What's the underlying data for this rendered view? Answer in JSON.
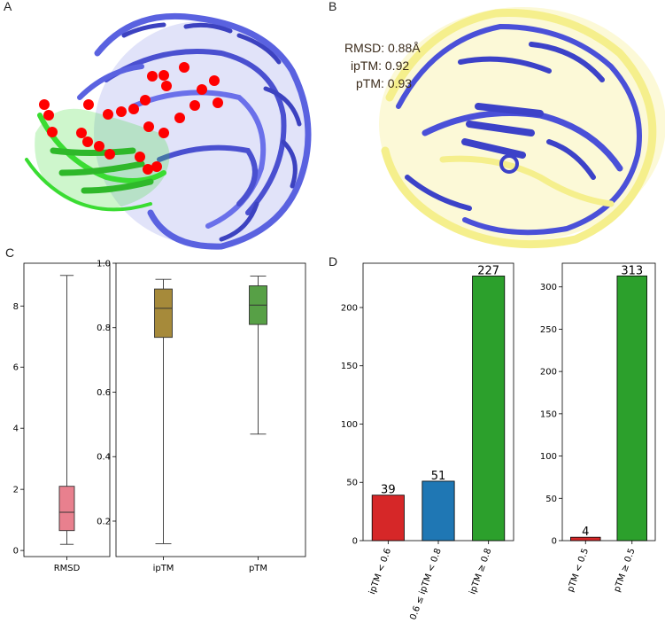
{
  "panels": {
    "A": {
      "letter": "A"
    },
    "B": {
      "letter": "B",
      "metrics": [
        "RMSD: 0.88Å",
        "ipTM: 0.92",
        "pTM: 0.93"
      ]
    },
    "C": {
      "letter": "C"
    },
    "D": {
      "letter": "D"
    }
  },
  "colors": {
    "protein_blue": "#5a62e0",
    "protein_green": "#3adc32",
    "interface_red": "#ff0000",
    "overlay_yellow": "#f5ef8c",
    "rmsd_box": "#e8808e",
    "iptm_box": "#a68a3a",
    "ptm_box": "#57a046",
    "bar_red": "#d62728",
    "bar_blue": "#1f77b4",
    "bar_green": "#2ca02c"
  },
  "chart_data": [
    {
      "id": "C-rmsd",
      "type": "box",
      "categories": [
        "RMSD"
      ],
      "ylim": [
        -0.2,
        9.4
      ],
      "yticks": [
        0,
        2,
        4,
        6,
        8
      ],
      "boxes": [
        {
          "label": "RMSD",
          "min": 0.2,
          "q1": 0.65,
          "median": 1.25,
          "q3": 2.1,
          "max": 9.0,
          "color": "#e8808e"
        }
      ]
    },
    {
      "id": "C-scores",
      "type": "box",
      "categories": [
        "ipTM",
        "pTM"
      ],
      "ylim": [
        0.09,
        1.0
      ],
      "yticks": [
        0.2,
        0.4,
        0.6,
        0.8,
        1.0
      ],
      "ytick_labels": [
        "0.2",
        "0.4",
        "0.6",
        "0.8",
        "1.0"
      ],
      "boxes": [
        {
          "label": "ipTM",
          "min": 0.13,
          "q1": 0.77,
          "median": 0.86,
          "q3": 0.92,
          "max": 0.95,
          "color": "#a68a3a"
        },
        {
          "label": "pTM",
          "min": 0.47,
          "q1": 0.81,
          "median": 0.87,
          "q3": 0.93,
          "max": 0.96,
          "color": "#57a046"
        }
      ]
    },
    {
      "id": "D-iptm",
      "type": "bar",
      "categories": [
        "ipTM < 0.6",
        "0.6 ≤ ipTM < 0.8",
        "ipTM ≥ 0.8"
      ],
      "values": [
        39,
        51,
        227
      ],
      "colors": [
        "#d62728",
        "#1f77b4",
        "#2ca02c"
      ],
      "ylim": [
        0,
        238
      ],
      "yticks": [
        0,
        50,
        100,
        150,
        200
      ]
    },
    {
      "id": "D-ptm",
      "type": "bar",
      "categories": [
        "pTM < 0.5",
        "pTM ≥ 0.5"
      ],
      "values": [
        4,
        313
      ],
      "colors": [
        "#d62728",
        "#2ca02c"
      ],
      "ylim": [
        0,
        328
      ],
      "yticks": [
        0,
        50,
        100,
        150,
        200,
        250,
        300
      ]
    }
  ]
}
